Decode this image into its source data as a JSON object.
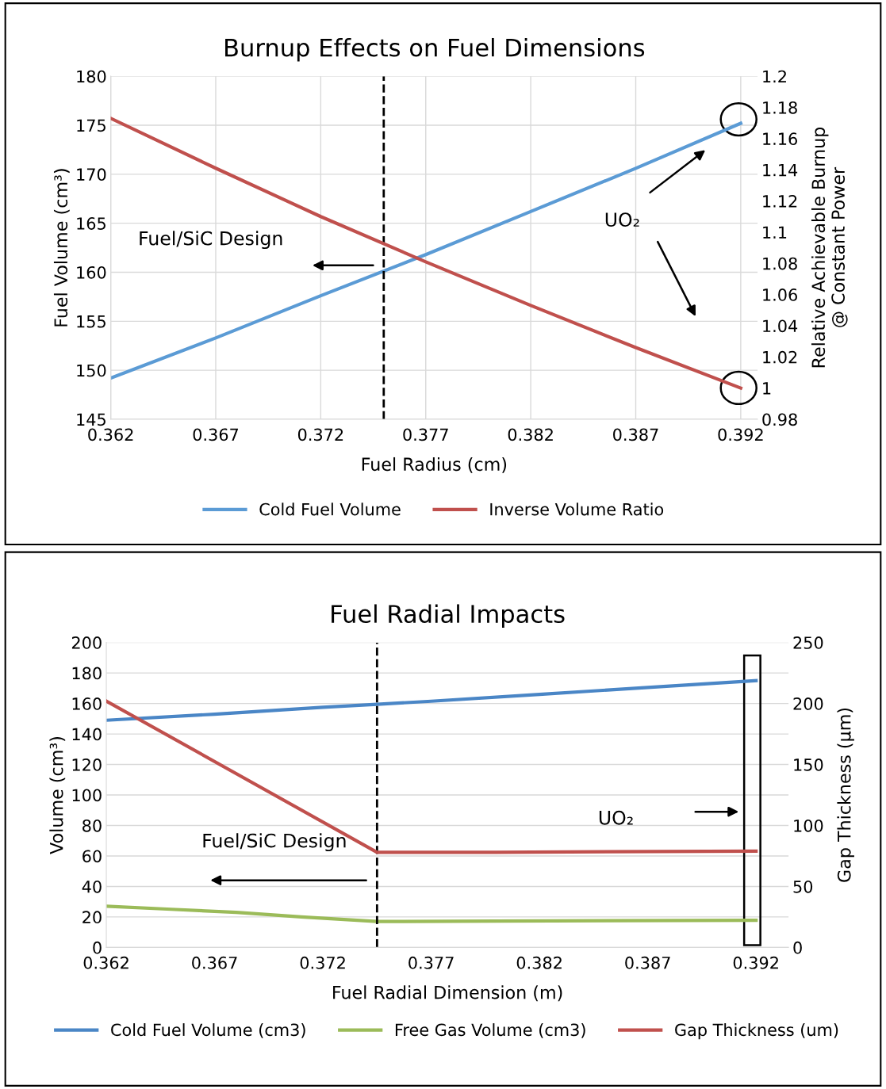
{
  "chart_data": [
    {
      "type": "line",
      "title": "Burnup Effects on Fuel Dimensions",
      "xlabel": "Fuel Radius (cm)",
      "ylabel": "Fuel Volume (cm³)",
      "y2label": "Relative Achievable Burnup\n@ Constant Power",
      "xlim": [
        0.362,
        0.3928
      ],
      "xticks": [
        0.362,
        0.367,
        0.372,
        0.377,
        0.382,
        0.387,
        0.392
      ],
      "ylim": [
        145,
        180
      ],
      "yticks": [
        145,
        150,
        155,
        160,
        165,
        170,
        175,
        180
      ],
      "y2lim": [
        0.98,
        1.2
      ],
      "y2ticks": [
        0.98,
        1,
        1.02,
        1.04,
        1.06,
        1.08,
        1.1,
        1.12,
        1.14,
        1.16,
        1.18,
        1.2
      ],
      "x": [
        0.362,
        0.367,
        0.372,
        0.377,
        0.382,
        0.387,
        0.392
      ],
      "series": [
        {
          "name": "Cold Fuel Volume",
          "color": "#5b9bd5",
          "values": [
            149.2,
            153.3,
            157.6,
            161.8,
            166.2,
            170.6,
            175.2
          ]
        },
        {
          "name": "Inverse Volume Ratio",
          "color": "#c0504d",
          "axis": "y2",
          "values": [
            1.173,
            1.141,
            1.11,
            1.081,
            1.053,
            1.026,
            1.0
          ]
        }
      ],
      "ref_lines": [
        {
          "axis": "x",
          "value": 0.375,
          "color": "#000000",
          "line_style": "dashed"
        }
      ],
      "annotations": [
        "Fuel/SiC Design",
        "UO₂"
      ],
      "grid": true,
      "legend": "bottom",
      "line_style": "solid",
      "marker": "none"
    },
    {
      "type": "line",
      "title": "Fuel Radial Impacts",
      "xlabel": "Fuel Radial Dimension (m)",
      "ylabel": "Volume (cm³)",
      "y2label": "Gap Thickness (µm)",
      "xlim": [
        0.362,
        0.3935
      ],
      "xticks": [
        0.362,
        0.367,
        0.372,
        0.377,
        0.382,
        0.387,
        0.392
      ],
      "ylim": [
        0,
        200
      ],
      "yticks": [
        0,
        20,
        40,
        60,
        80,
        100,
        120,
        140,
        160,
        180,
        200
      ],
      "y2lim": [
        0,
        250
      ],
      "y2ticks": [
        0,
        50,
        100,
        150,
        200,
        250
      ],
      "series": [
        {
          "name": "Cold Fuel Volume (cm3)",
          "color": "#4a86c6",
          "x": [
            0.362,
            0.367,
            0.372,
            0.3745,
            0.377,
            0.382,
            0.387,
            0.392
          ],
          "values": [
            149,
            153,
            157.5,
            159.5,
            161.5,
            166,
            170.5,
            175
          ]
        },
        {
          "name": "Free Gas Volume (cm3)",
          "color": "#9bbb59",
          "x": [
            0.362,
            0.365,
            0.368,
            0.371,
            0.3745,
            0.38,
            0.392
          ],
          "values": [
            27,
            25,
            23,
            20,
            17,
            17.3,
            17.8
          ]
        },
        {
          "name": "Gap Thickness (um)",
          "color": "#c0504d",
          "axis": "y2",
          "x": [
            0.362,
            0.3745,
            0.38,
            0.392
          ],
          "values": [
            202,
            78,
            78,
            79
          ]
        }
      ],
      "ref_lines": [
        {
          "axis": "x",
          "value": 0.3745,
          "color": "#000000",
          "line_style": "dashed"
        }
      ],
      "annotations": [
        "Fuel/SiC Design",
        "UO₂"
      ],
      "grid": "y",
      "legend": "bottom",
      "line_style": "solid",
      "marker": "none"
    }
  ]
}
